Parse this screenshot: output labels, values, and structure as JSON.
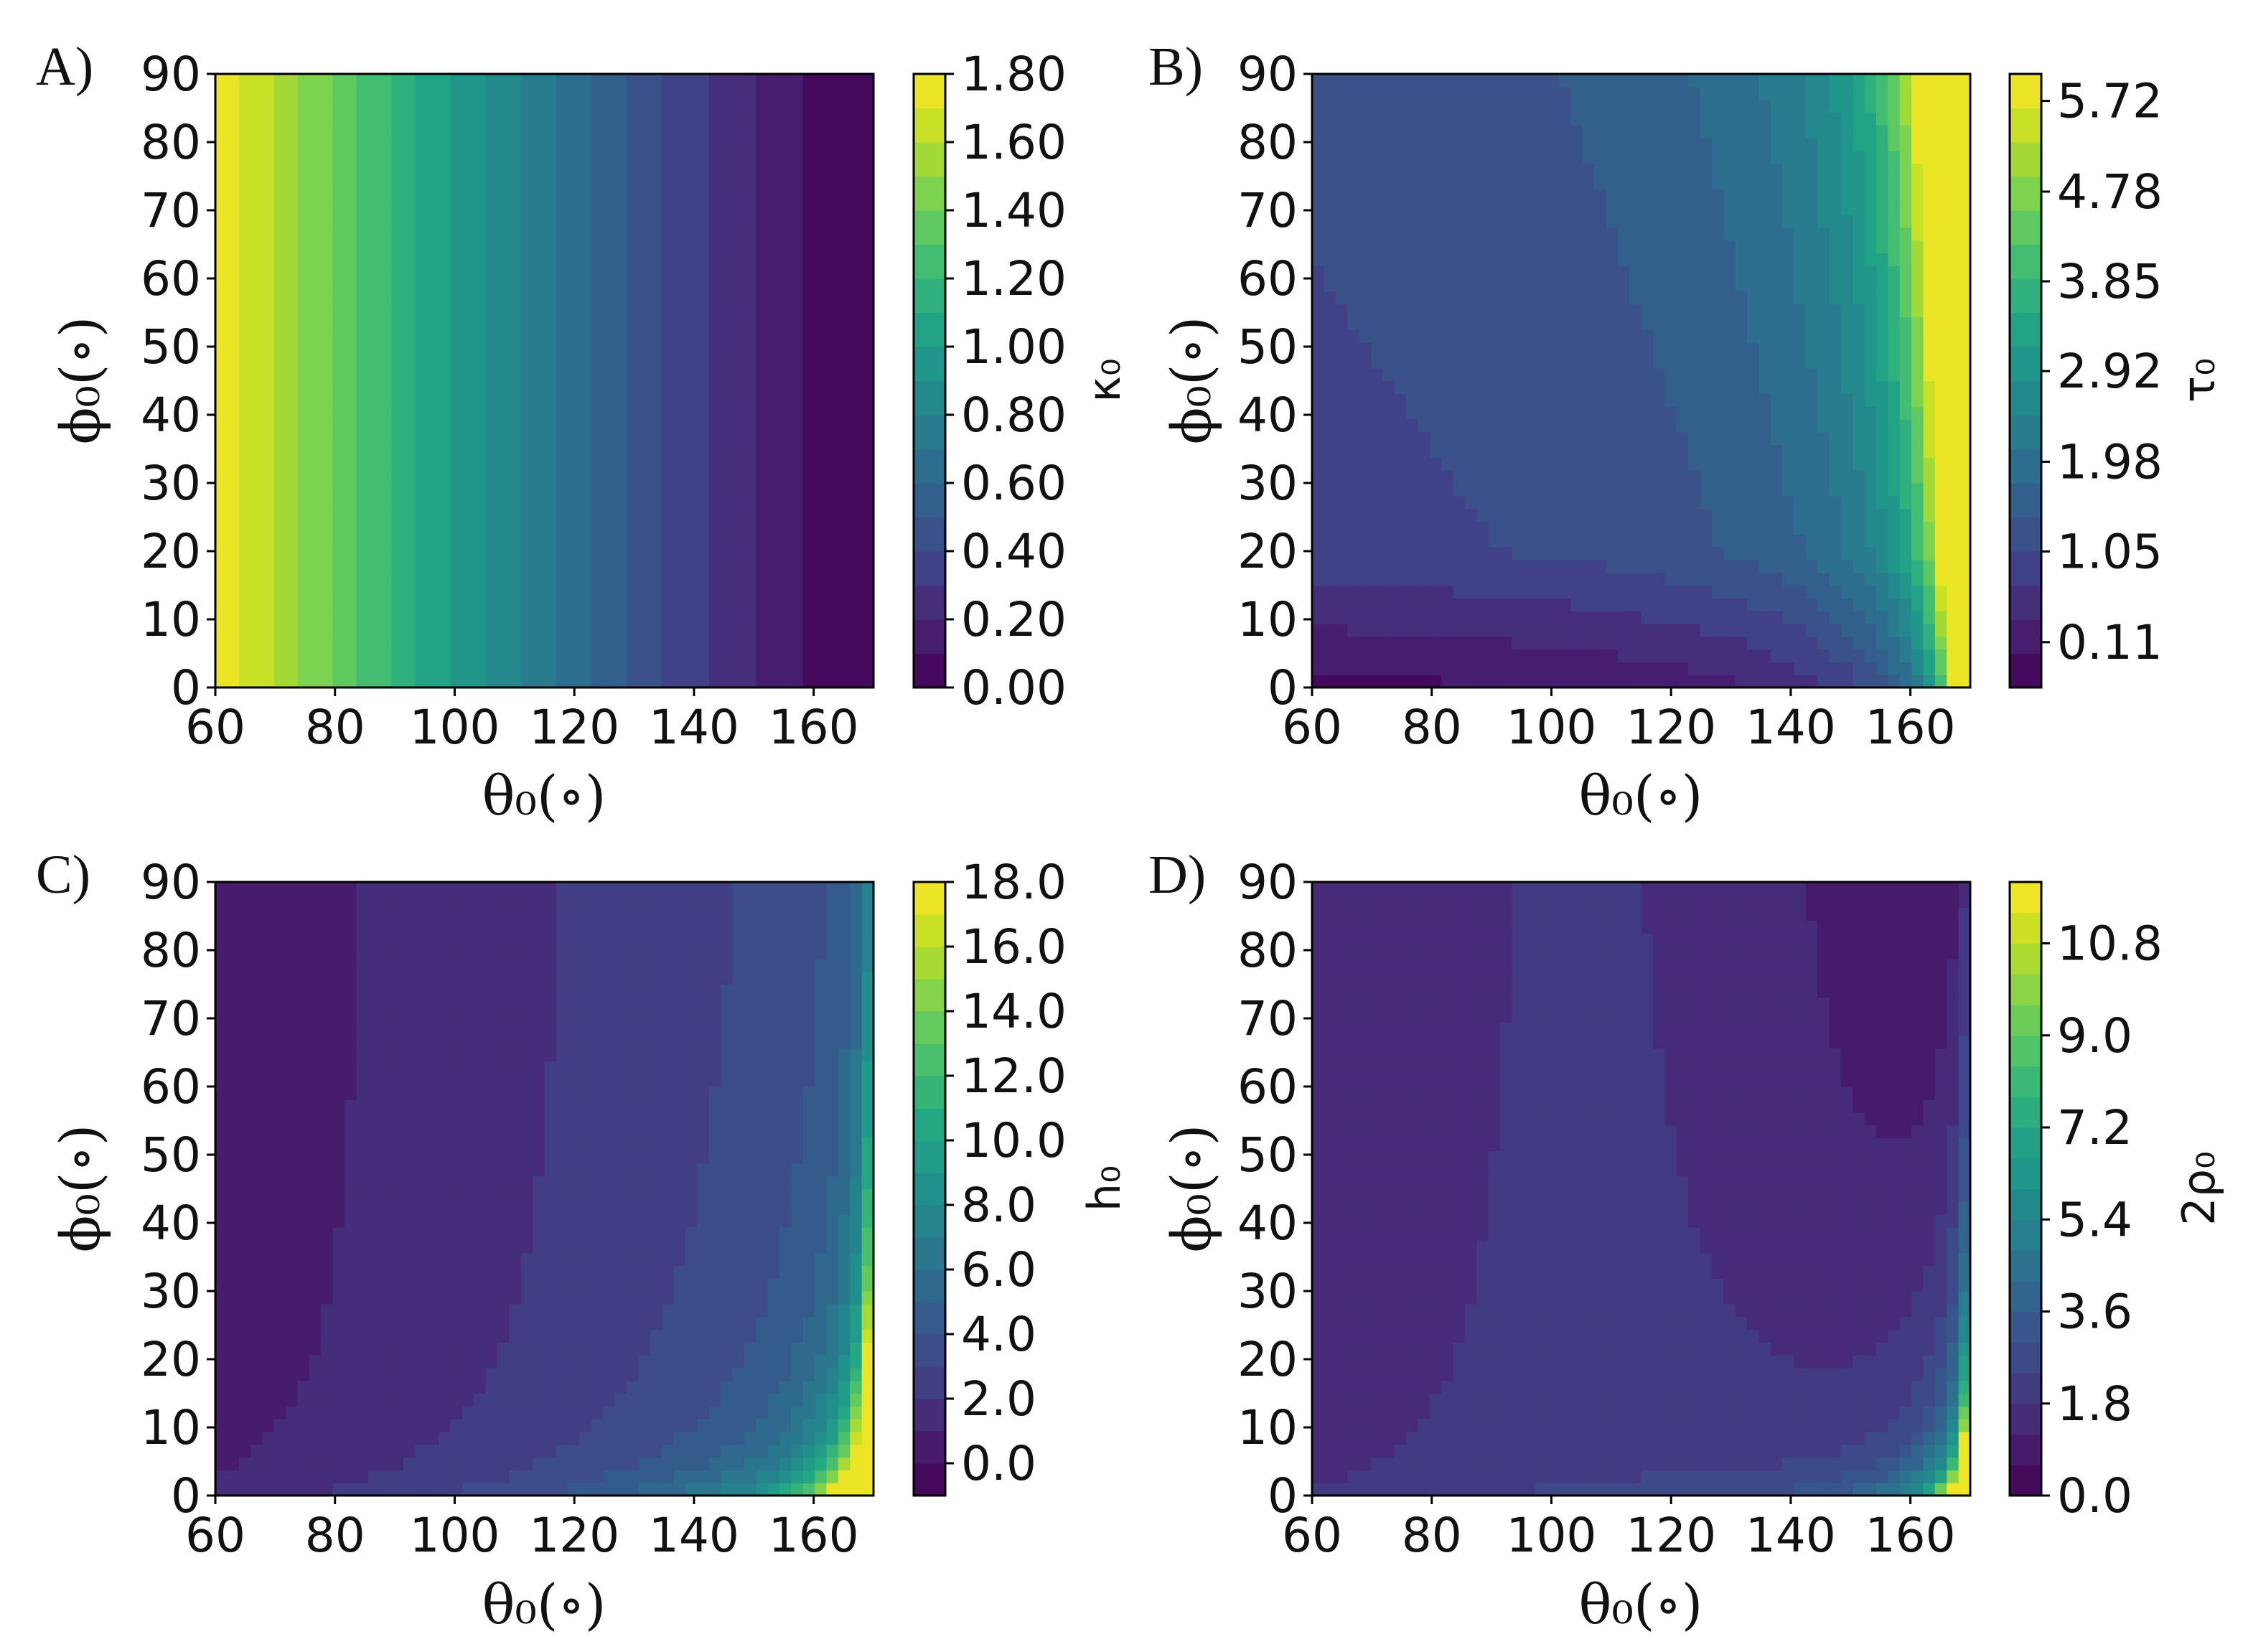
{
  "chart_data": [
    {
      "type": "heatmap",
      "panel_label": "A)",
      "xlabel": "θ₀(∘)",
      "ylabel": "ϕ₀(∘)",
      "colorbar_label": "κ₀",
      "xlim": [
        60,
        170
      ],
      "ylim": [
        0,
        90
      ],
      "x_ticks": [
        "60",
        "80",
        "100",
        "120",
        "140",
        "160"
      ],
      "y_ticks": [
        "0",
        "10",
        "20",
        "30",
        "40",
        "50",
        "60",
        "70",
        "80",
        "90"
      ],
      "colorbar_range": [
        0,
        1.8
      ],
      "colorbar_ticks": [
        "0.00",
        "0.20",
        "0.40",
        "0.60",
        "0.80",
        "1.00",
        "1.20",
        "1.40",
        "1.60",
        "1.80"
      ],
      "colorbar_tick_values": [
        0,
        0.2,
        0.4,
        0.6,
        0.8,
        1.0,
        1.2,
        1.4,
        1.6,
        1.8
      ],
      "levels": 18,
      "colormap": "viridis"
    },
    {
      "type": "heatmap",
      "panel_label": "B)",
      "xlabel": "θ₀(∘)",
      "ylabel": "ϕ₀(∘)",
      "colorbar_label": "τ₀",
      "xlim": [
        60,
        170
      ],
      "ylim": [
        0,
        90
      ],
      "x_ticks": [
        "60",
        "80",
        "100",
        "120",
        "140",
        "160"
      ],
      "y_ticks": [
        "0",
        "10",
        "20",
        "30",
        "40",
        "50",
        "60",
        "70",
        "80",
        "90"
      ],
      "colorbar_range": [
        -0.36,
        6.0
      ],
      "colorbar_ticks": [
        "0.11",
        "1.05",
        "1.98",
        "2.92",
        "3.85",
        "4.78",
        "5.72"
      ],
      "colorbar_tick_values": [
        0.11,
        1.05,
        1.98,
        2.92,
        3.85,
        4.78,
        5.72
      ],
      "levels": 18,
      "colormap": "viridis"
    },
    {
      "type": "heatmap",
      "panel_label": "C)",
      "xlabel": "θ₀(∘)",
      "ylabel": "ϕ₀(∘)",
      "colorbar_label": "h₀",
      "xlim": [
        60,
        170
      ],
      "ylim": [
        0,
        90
      ],
      "x_ticks": [
        "60",
        "80",
        "100",
        "120",
        "140",
        "160"
      ],
      "y_ticks": [
        "0",
        "10",
        "20",
        "30",
        "40",
        "50",
        "60",
        "70",
        "80",
        "90"
      ],
      "colorbar_range": [
        -1.0,
        18.0
      ],
      "colorbar_ticks": [
        "0.0",
        "2.0",
        "4.0",
        "6.0",
        "8.0",
        "10.0",
        "12.0",
        "14.0",
        "16.0",
        "18.0"
      ],
      "colorbar_tick_values": [
        0,
        2,
        4,
        6,
        8,
        10,
        12,
        14,
        16,
        18
      ],
      "levels": 19,
      "colormap": "viridis"
    },
    {
      "type": "heatmap",
      "panel_label": "D)",
      "xlabel": "θ₀(∘)",
      "ylabel": "ϕ₀(∘)",
      "colorbar_label": "2ρ₀",
      "xlim": [
        60,
        170
      ],
      "ylim": [
        0,
        90
      ],
      "x_ticks": [
        "60",
        "80",
        "100",
        "120",
        "140",
        "160"
      ],
      "y_ticks": [
        "0",
        "10",
        "20",
        "30",
        "40",
        "50",
        "60",
        "70",
        "80",
        "90"
      ],
      "colorbar_range": [
        0,
        12.0
      ],
      "colorbar_ticks": [
        "0.0",
        "1.8",
        "3.6",
        "5.4",
        "7.2",
        "9.0",
        "10.8"
      ],
      "colorbar_tick_values": [
        0,
        1.8,
        3.6,
        5.4,
        7.2,
        9.0,
        10.8
      ],
      "levels": 20,
      "colormap": "viridis"
    }
  ]
}
